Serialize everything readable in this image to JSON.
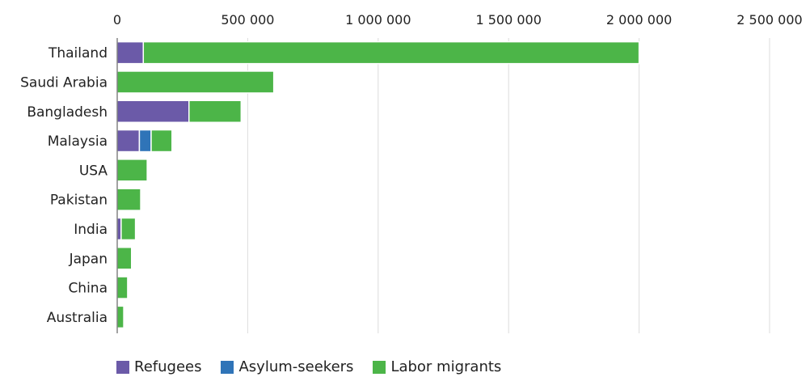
{
  "chart_data": {
    "type": "bar",
    "orientation": "horizontal",
    "stacked": true,
    "categories": [
      "Thailand",
      "Saudi Arabia",
      "Bangladesh",
      "Malaysia",
      "USA",
      "Pakistan",
      "India",
      "Japan",
      "China",
      "Australia"
    ],
    "series": [
      {
        "name": "Refugees",
        "color": "#6b5aa8",
        "values": [
          100000,
          0,
          275000,
          85000,
          0,
          0,
          15000,
          0,
          0,
          0
        ]
      },
      {
        "name": "Asylum-seekers",
        "color": "#2f74b8",
        "values": [
          0,
          0,
          0,
          45000,
          0,
          0,
          0,
          0,
          0,
          0
        ]
      },
      {
        "name": "Labor migrants",
        "color": "#4cb548",
        "values": [
          1900000,
          600000,
          200000,
          80000,
          115000,
          90000,
          55000,
          55000,
          40000,
          25000
        ]
      }
    ],
    "x_ticks": [
      "0",
      "500 000",
      "1 000 000",
      "1 500 000",
      "2 000 000",
      "2 500 000"
    ],
    "xlim": [
      0,
      2500000
    ],
    "grid": true,
    "legend_position": "bottom",
    "title": "",
    "xlabel": "",
    "ylabel": ""
  }
}
